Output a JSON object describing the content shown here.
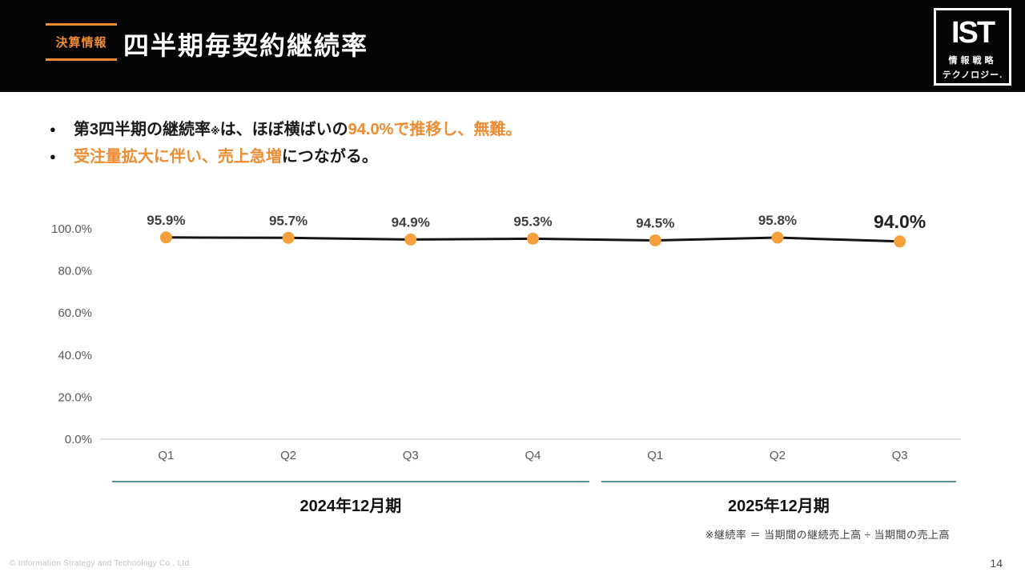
{
  "header": {
    "badge": "決算情報",
    "title": "四半期毎契約継続率"
  },
  "logo": {
    "acronym": "IST",
    "line1": "情報戦略",
    "line2": "テクノロジー."
  },
  "bullets": [
    {
      "segments": [
        {
          "text": "第3四半期の継続率",
          "color": "black"
        },
        {
          "text": "※",
          "color": "black",
          "small": true
        },
        {
          "text": "は、ほぼ横ばいの",
          "color": "black"
        },
        {
          "text": "94.0%で推移し、無難。",
          "color": "orange"
        }
      ]
    },
    {
      "segments": [
        {
          "text": "受注量拡大に伴い、売上急増",
          "color": "orange"
        },
        {
          "text": "につながる。",
          "color": "black"
        }
      ]
    }
  ],
  "chart_data": {
    "type": "line",
    "categories": [
      "Q1",
      "Q2",
      "Q3",
      "Q4",
      "Q1",
      "Q2",
      "Q3"
    ],
    "values": [
      95.9,
      95.7,
      94.9,
      95.3,
      94.5,
      95.8,
      94.0
    ],
    "labels": [
      "95.9%",
      "95.7%",
      "94.9%",
      "95.3%",
      "94.5%",
      "95.8%",
      "94.0%"
    ],
    "emphasized_index": 6,
    "y_ticks": [
      "100.0%",
      "80.0%",
      "60.0%",
      "40.0%",
      "20.0%",
      "0.0%"
    ],
    "y_tick_values": [
      100,
      80,
      60,
      40,
      20,
      0
    ],
    "ylim": [
      0,
      100
    ],
    "grid": false,
    "legend": "none",
    "groups": [
      {
        "label": "2024年12月期",
        "span": [
          0,
          3
        ]
      },
      {
        "label": "2025年12月期",
        "span": [
          4,
          6
        ]
      }
    ]
  },
  "footnote": "※継続率 ＝ 当期間の継続売上高 ÷ 当期間の売上高",
  "footer": {
    "copyright": "© Information Strategy and Technology Co., Ltd.",
    "page_number": "14"
  },
  "colors": {
    "accent_orange": "#ED8C32",
    "marker_orange": "#F5A03C",
    "line_black": "#141414",
    "axis_gray": "#d9d9d9",
    "tick_gray": "#595959",
    "data_label_gray": "#3F3F3F",
    "emphasis_black": "#212121",
    "group_line_teal": "#5B8FA0",
    "header_black": "#050505"
  }
}
